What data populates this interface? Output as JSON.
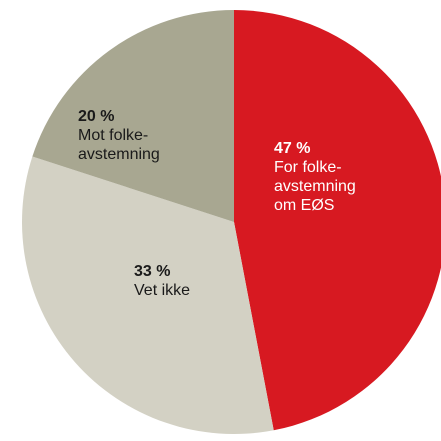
{
  "chart_data": {
    "type": "pie",
    "title": "",
    "slices": [
      {
        "value": 47,
        "pct_label": "47 %",
        "label_lines": [
          "For folke-",
          "avstemning",
          "om EØS"
        ],
        "color": "#d71921",
        "text_color": "#ffffff"
      },
      {
        "value": 33,
        "pct_label": "33 %",
        "label_lines": [
          "Vet ikke"
        ],
        "color": "#d3d1c4",
        "text_color": "#1a1a1a"
      },
      {
        "value": 20,
        "pct_label": "20 %",
        "label_lines": [
          "Mot folke-",
          "avstemning"
        ],
        "color": "#a8a791",
        "text_color": "#1a1a1a"
      }
    ]
  }
}
